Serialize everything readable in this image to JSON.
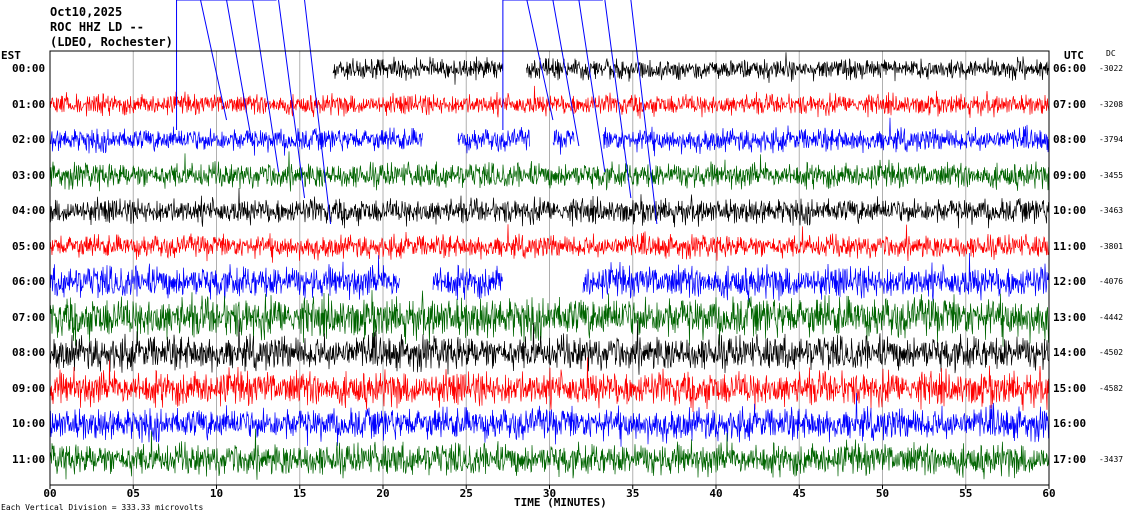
{
  "header": {
    "date": "Oct10,2025",
    "station": "ROC HHZ LD --",
    "network": "(LDEO, Rochester)"
  },
  "left_axis_title": "EST",
  "right_axis_title": "UTC",
  "dc_title": "DC",
  "footer": {
    "scale_prefix": "Each Vertical Division = ",
    "scale_value": "333.33 microvolts"
  },
  "colors": {
    "black": "#000000",
    "red": "#ff0000",
    "blue": "#0000ff",
    "green": "#006400"
  },
  "chart_data": {
    "type": "line",
    "title": "",
    "xlabel": "TIME (MINUTES)",
    "xlim": [
      0,
      60
    ],
    "x_ticks": [
      "00",
      "05",
      "10",
      "15",
      "20",
      "25",
      "30",
      "35",
      "40",
      "45",
      "50",
      "55",
      "60"
    ],
    "x_tick_values": [
      0,
      5,
      10,
      15,
      20,
      25,
      30,
      35,
      40,
      45,
      50,
      55,
      60
    ],
    "grid": true,
    "rows": [
      {
        "est": "00:00",
        "utc": "06:00",
        "dc": "-3022",
        "color": "black",
        "start_min": 17.0,
        "end_min": 60,
        "amplitude": 0.45,
        "gaps": [
          [
            27.2,
            28.6
          ]
        ]
      },
      {
        "est": "01:00",
        "utc": "07:00",
        "dc": "-3208",
        "color": "red",
        "start_min": 0,
        "end_min": 60,
        "amplitude": 0.45,
        "gaps": []
      },
      {
        "est": "02:00",
        "utc": "08:00",
        "dc": "-3794",
        "color": "blue",
        "start_min": 0,
        "end_min": 60,
        "amplitude": 0.5,
        "gaps": [
          [
            22.4,
            24.5
          ],
          [
            28.8,
            30.2
          ],
          [
            31.5,
            33.2
          ]
        ]
      },
      {
        "est": "03:00",
        "utc": "09:00",
        "dc": "-3455",
        "color": "green",
        "start_min": 0,
        "end_min": 60,
        "amplitude": 0.55,
        "gaps": []
      },
      {
        "est": "04:00",
        "utc": "10:00",
        "dc": "-3463",
        "color": "black",
        "start_min": 0,
        "end_min": 60,
        "amplitude": 0.55,
        "gaps": []
      },
      {
        "est": "05:00",
        "utc": "11:00",
        "dc": "-3801",
        "color": "red",
        "start_min": 0,
        "end_min": 60,
        "amplitude": 0.5,
        "gaps": []
      },
      {
        "est": "06:00",
        "utc": "12:00",
        "dc": "-4076",
        "color": "blue",
        "start_min": 0,
        "end_min": 60,
        "amplitude": 0.7,
        "gaps": [
          [
            21.0,
            23.0
          ],
          [
            27.2,
            32.0
          ]
        ]
      },
      {
        "est": "07:00",
        "utc": "13:00",
        "dc": "-4442",
        "color": "green",
        "start_min": 0,
        "end_min": 60,
        "amplitude": 0.9,
        "gaps": []
      },
      {
        "est": "08:00",
        "utc": "14:00",
        "dc": "-4502",
        "color": "black",
        "start_min": 0,
        "end_min": 60,
        "amplitude": 0.75,
        "gaps": []
      },
      {
        "est": "09:00",
        "utc": "15:00",
        "dc": "-4582",
        "color": "red",
        "start_min": 0,
        "end_min": 60,
        "amplitude": 0.75,
        "gaps": []
      },
      {
        "est": "10:00",
        "utc": "16:00",
        "dc": "",
        "color": "blue",
        "start_min": 0,
        "end_min": 60,
        "amplitude": 0.7,
        "gaps": []
      },
      {
        "est": "11:00",
        "utc": "17:00",
        "dc": "-3437",
        "color": "green",
        "start_min": 0,
        "end_min": 60,
        "amplitude": 0.7,
        "gaps": []
      }
    ],
    "event_marker_minutes": [
      7.6,
      27.2
    ]
  }
}
